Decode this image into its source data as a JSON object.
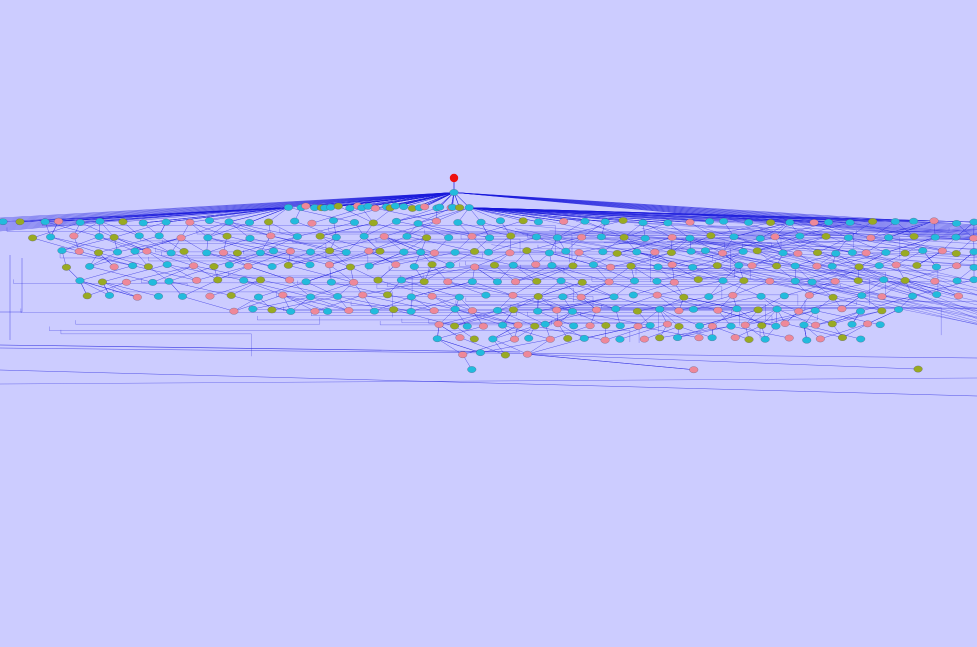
{
  "graph": {
    "type": "hierarchical-network",
    "colors": {
      "background": "#ccccff",
      "edge": "#1a1adb",
      "root": "#ee1111",
      "cyan": "#22bbdd",
      "pink": "#ee8899",
      "olive": "#99aa22"
    },
    "root_node": {
      "color_key": "root"
    },
    "layers": [
      {
        "id": "L1",
        "count": 1,
        "colors": [
          "cyan"
        ]
      },
      {
        "id": "L2",
        "count": 26,
        "colors": [
          "cyan",
          "cyan",
          "pink",
          "cyan",
          "olive",
          "cyan",
          "cyan",
          "olive",
          "cyan",
          "pink"
        ]
      },
      {
        "id": "L3",
        "count": 48,
        "colors": [
          "cyan",
          "olive",
          "cyan",
          "pink",
          "cyan",
          "cyan",
          "olive",
          "cyan",
          "cyan",
          "pink",
          "cyan",
          "cyan"
        ]
      },
      {
        "id": "L4",
        "count": 44,
        "colors": [
          "olive",
          "cyan",
          "pink",
          "cyan",
          "olive",
          "cyan",
          "cyan",
          "pink",
          "cyan"
        ]
      },
      {
        "id": "L5",
        "count": 52,
        "colors": [
          "cyan",
          "pink",
          "olive",
          "cyan",
          "cyan",
          "pink",
          "cyan",
          "olive"
        ]
      },
      {
        "id": "L6",
        "count": 46,
        "colors": [
          "olive",
          "cyan",
          "pink",
          "cyan",
          "olive",
          "cyan",
          "pink"
        ]
      },
      {
        "id": "L7",
        "count": 40,
        "colors": [
          "cyan",
          "olive",
          "pink",
          "cyan",
          "cyan",
          "pink",
          "olive"
        ]
      },
      {
        "id": "L8",
        "count": 36,
        "colors": [
          "olive",
          "cyan",
          "pink",
          "cyan",
          "cyan",
          "pink"
        ]
      },
      {
        "id": "L9",
        "count": 34,
        "colors": [
          "pink",
          "cyan",
          "olive",
          "cyan",
          "pink",
          "cyan"
        ]
      },
      {
        "id": "L10",
        "count": 30,
        "colors": [
          "pink",
          "olive",
          "cyan",
          "pink",
          "cyan"
        ]
      },
      {
        "id": "L11",
        "count": 24,
        "colors": [
          "cyan",
          "pink",
          "olive",
          "cyan",
          "pink"
        ]
      },
      {
        "id": "L12",
        "count": 4,
        "colors": [
          "pink",
          "cyan",
          "olive"
        ]
      },
      {
        "id": "L13",
        "count": 3,
        "colors": [
          "cyan",
          "pink",
          "olive"
        ]
      }
    ]
  }
}
